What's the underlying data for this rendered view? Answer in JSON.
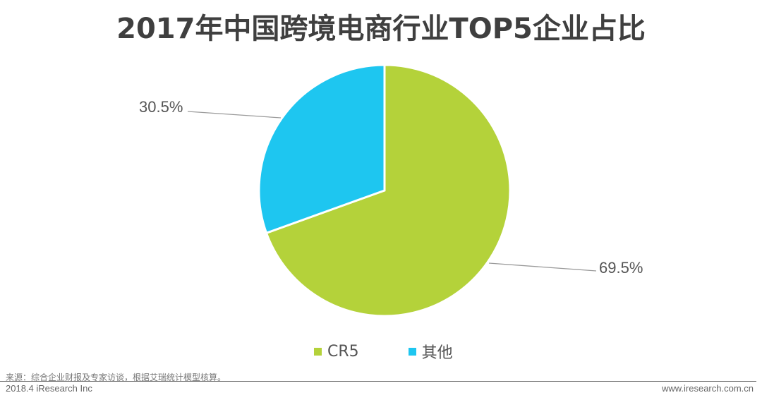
{
  "header": {
    "title": "2017年中国跨境电商行业TOP5企业占比"
  },
  "chart_data": {
    "type": "pie",
    "title": "2017年中国跨境电商行业TOP5企业占比",
    "categories": [
      "CR5",
      "其他"
    ],
    "values": [
      69.5,
      30.5
    ],
    "unit": "%",
    "colors": [
      "#b4d23a",
      "#1ec6f0"
    ],
    "data_labels": [
      "69.5%",
      "30.5%"
    ],
    "start_angle": "12 o'clock, clockwise",
    "legend_position": "bottom"
  },
  "labels": {
    "cr5": "69.5%",
    "other": "30.5%"
  },
  "legend": [
    {
      "label": "CR5",
      "color": "#b4d23a"
    },
    {
      "label": "其他",
      "color": "#1ec6f0"
    }
  ],
  "footer": {
    "source": "来源：综合企业财报及专家访谈，根据艾瑞统计模型核算。",
    "left": "2018.4 iResearch Inc",
    "right": "www.iresearch.com.cn"
  }
}
